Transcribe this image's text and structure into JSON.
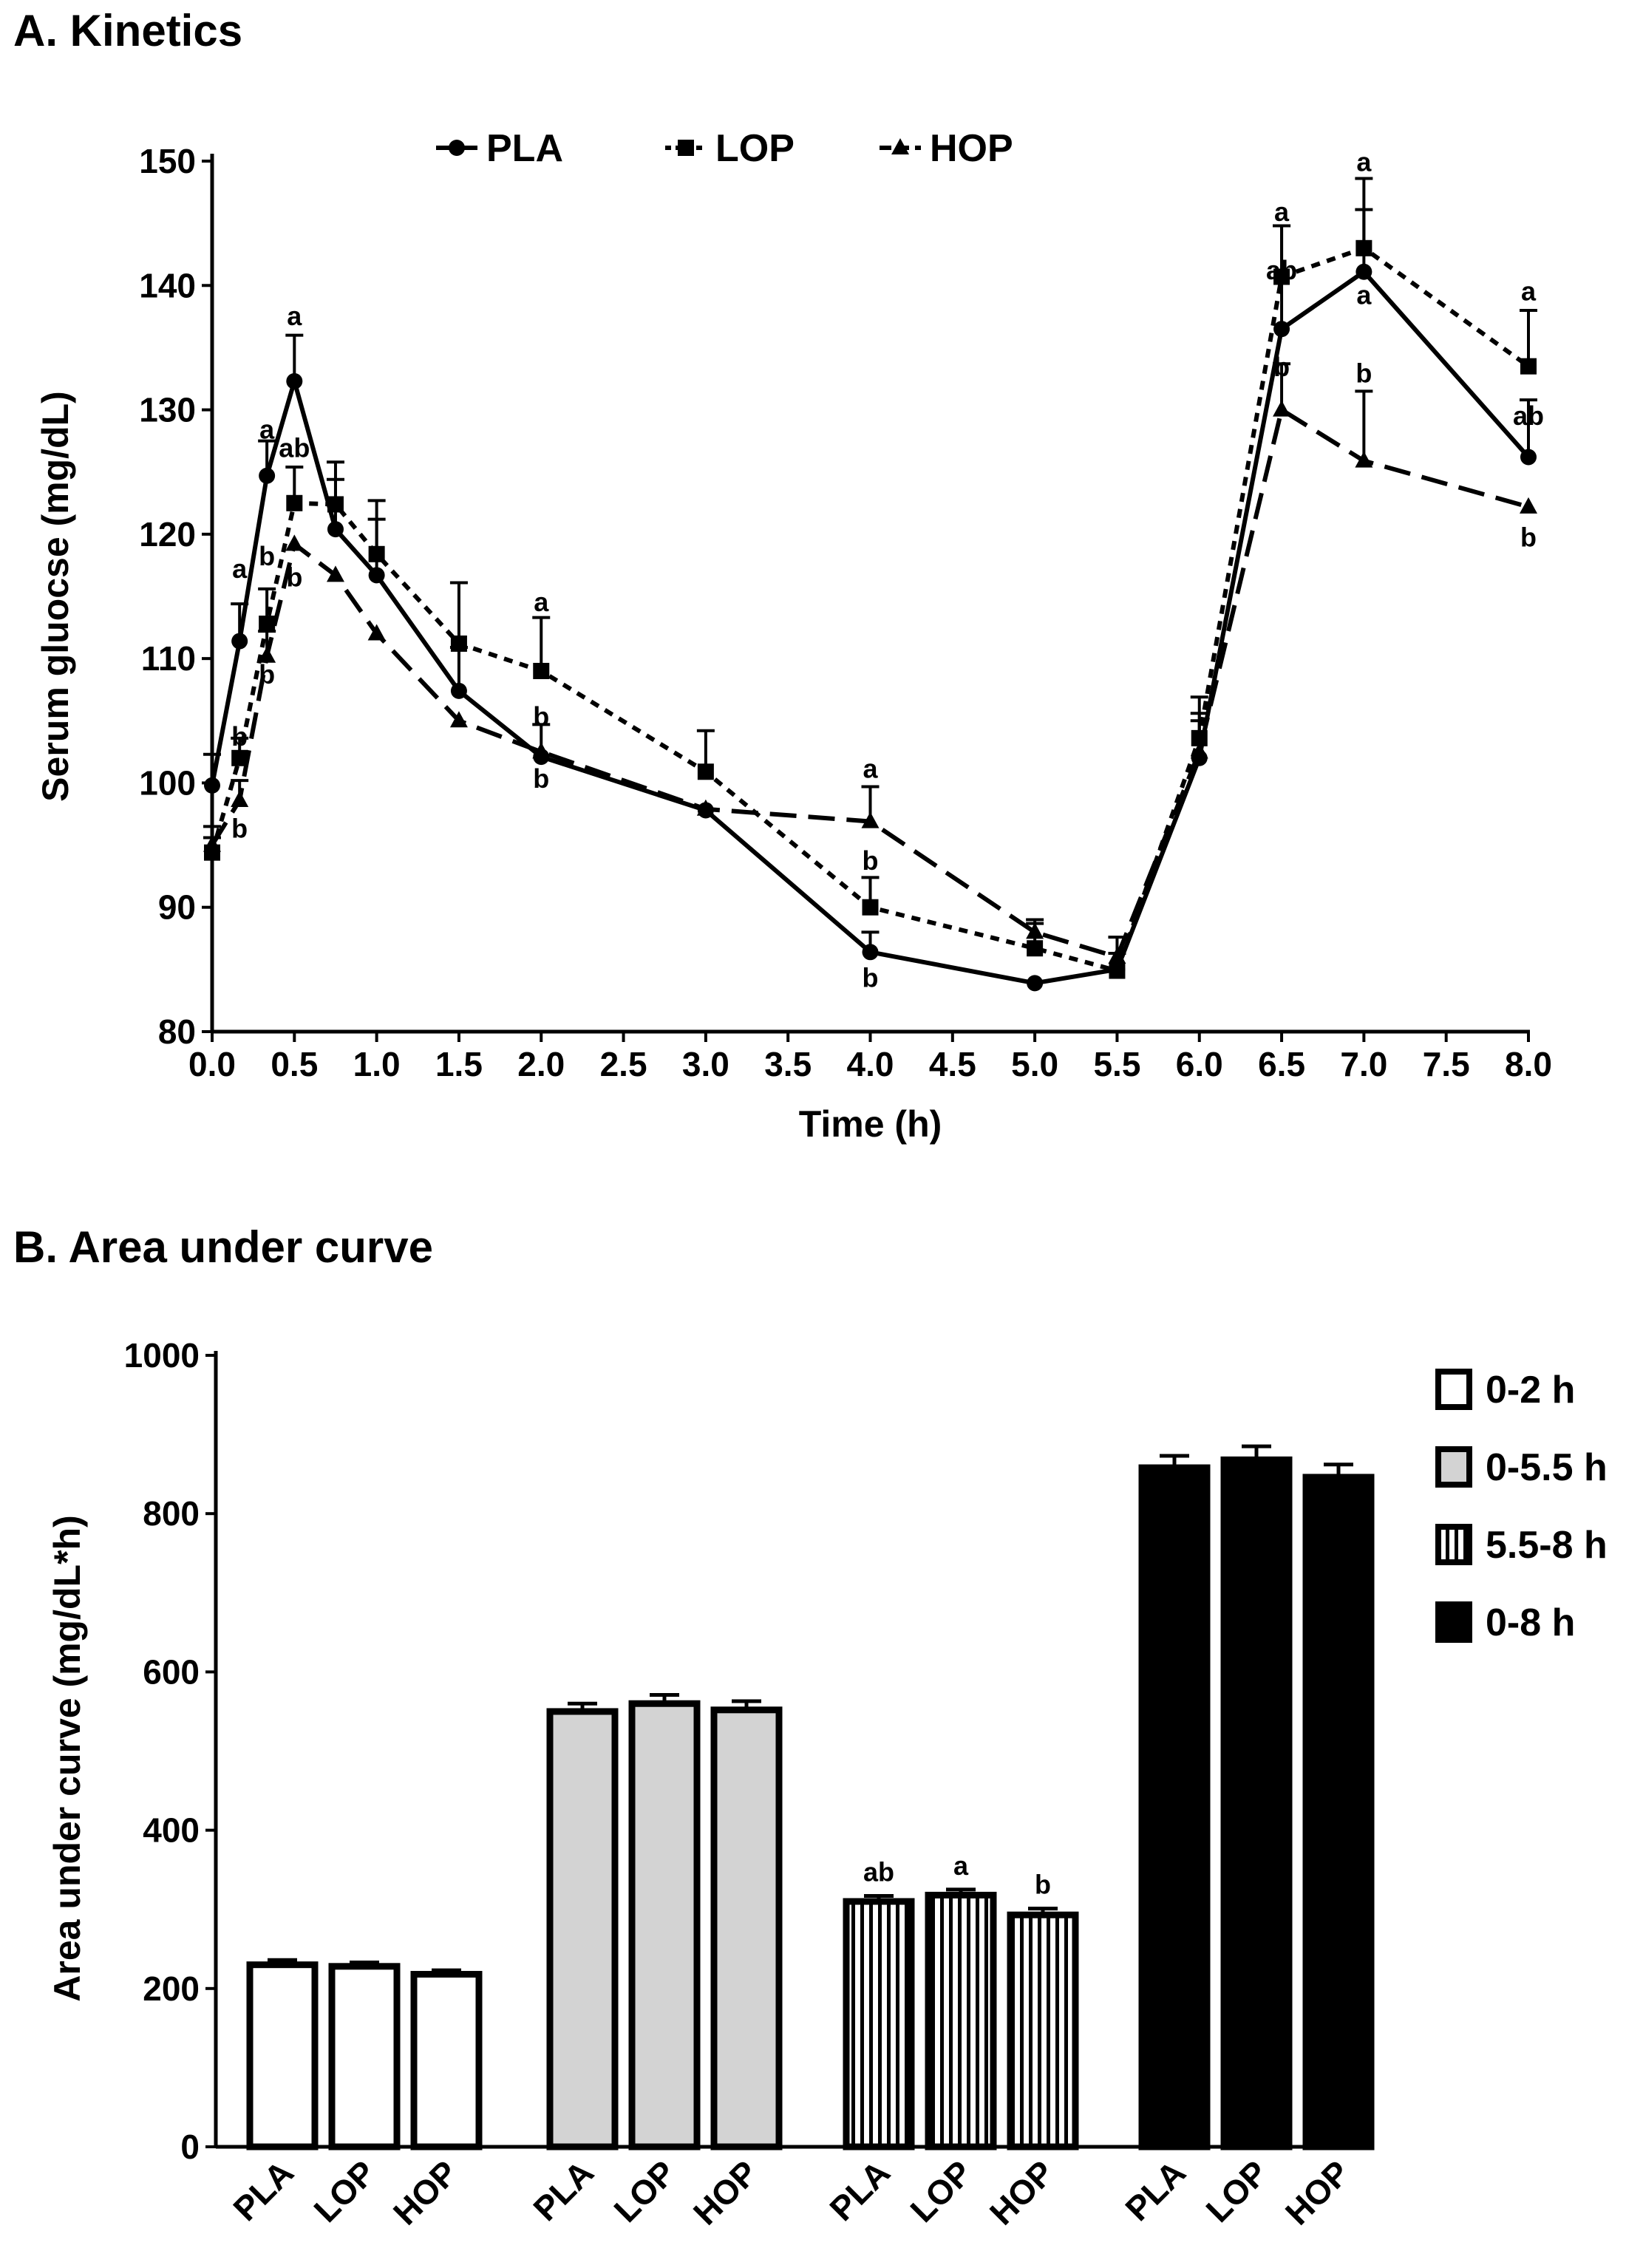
{
  "panel_a_title": "A. Kinetics",
  "panel_b_title": "B. Area under curve",
  "chart_data": [
    {
      "type": "line",
      "title": "A. Kinetics",
      "xlabel": "Time (h)",
      "ylabel": "Serum gluocse (mg/dL)",
      "xlim": [
        0,
        8
      ],
      "ylim": [
        80,
        150
      ],
      "xticks": [
        0,
        0.5,
        1,
        1.5,
        2,
        2.5,
        3,
        3.5,
        4,
        4.5,
        5,
        5.5,
        6,
        6.5,
        7,
        7.5,
        8
      ],
      "xtick_labels": [
        "0.0",
        "0.5",
        "1.0",
        "1.5",
        "2.0",
        "2.5",
        "3.0",
        "3.5",
        "4.0",
        "4.5",
        "5.0",
        "5.5",
        "6.0",
        "6.5",
        "7.0",
        "7.5",
        "8.0"
      ],
      "yticks": [
        80,
        90,
        100,
        110,
        120,
        130,
        140,
        150
      ],
      "ytick_labels": [
        "80",
        "90",
        "100",
        "110",
        "120",
        "130",
        "140",
        "150"
      ],
      "x": [
        0,
        0.167,
        0.333,
        0.5,
        0.75,
        1.0,
        1.5,
        2.0,
        3.0,
        4.0,
        5.0,
        5.5,
        6.0,
        6.5,
        7.0,
        8.0
      ],
      "series": [
        {
          "name": "PLA",
          "marker": "circle",
          "dash": "solid",
          "values": [
            99.8,
            111.4,
            124.7,
            132.3,
            120.4,
            116.7,
            107.4,
            102.1,
            97.8,
            86.4,
            83.9,
            85.0,
            102.0,
            136.5,
            141.1,
            126.2
          ],
          "errors": [
            2.5,
            3.0,
            2.8,
            3.7,
            4.0,
            4.5,
            3.5,
            2.6,
            0,
            1.6,
            0,
            0,
            3.0,
            8.3,
            5.0,
            4.6
          ]
        },
        {
          "name": "LOP",
          "marker": "square",
          "dash": "dotted",
          "values": [
            94.4,
            102.0,
            112.8,
            122.5,
            122.4,
            118.4,
            111.2,
            109.0,
            100.9,
            90.0,
            86.7,
            84.9,
            103.6,
            140.7,
            143.0,
            133.5
          ],
          "errors": [
            1.2,
            1.6,
            2.8,
            2.9,
            3.4,
            4.3,
            4.9,
            4.3,
            3.3,
            2.4,
            2.0,
            1.4,
            3.3,
            4.1,
            5.6,
            4.5
          ]
        },
        {
          "name": "HOP",
          "marker": "triangle",
          "dash": "dashed",
          "values": [
            95.0,
            98.6,
            110.2,
            119.2,
            116.7,
            112.0,
            105.0,
            102.5,
            97.9,
            96.9,
            88.0,
            86.0,
            102.5,
            130.0,
            125.9,
            122.2
          ],
          "errors": [
            1.5,
            1.6,
            2.0,
            0,
            0,
            0,
            0,
            0,
            0,
            2.8,
            1.0,
            1.6,
            3.1,
            3.7,
            5.6,
            0
          ]
        }
      ],
      "annotations": [
        {
          "text": "a",
          "x": 0.5,
          "y": 136.8
        },
        {
          "text": "a",
          "x": 0.167,
          "y": 116.5
        },
        {
          "text": "a",
          "x": 0.333,
          "y": 127.7
        },
        {
          "text": "ab",
          "x": 0.5,
          "y": 126.2
        },
        {
          "text": "b",
          "x": 0.333,
          "y": 117.5
        },
        {
          "text": "b",
          "x": 0.5,
          "y": 115.8
        },
        {
          "text": "b",
          "x": 0.333,
          "y": 108.0
        },
        {
          "text": "b",
          "x": 0.167,
          "y": 103.0
        },
        {
          "text": "b",
          "x": 0.167,
          "y": 95.6
        },
        {
          "text": "a",
          "x": 2.0,
          "y": 113.8
        },
        {
          "text": "b",
          "x": 2.0,
          "y": 104.6
        },
        {
          "text": "b",
          "x": 2.0,
          "y": 99.6
        },
        {
          "text": "a",
          "x": 4.0,
          "y": 100.4
        },
        {
          "text": "b",
          "x": 4.0,
          "y": 93.0
        },
        {
          "text": "b",
          "x": 4.0,
          "y": 83.6
        },
        {
          "text": "a",
          "x": 6.5,
          "y": 145.2
        },
        {
          "text": "ab",
          "x": 6.5,
          "y": 140.5
        },
        {
          "text": "b",
          "x": 6.5,
          "y": 132.7
        },
        {
          "text": "a",
          "x": 7.0,
          "y": 149.2
        },
        {
          "text": "a",
          "x": 7.0,
          "y": 138.5
        },
        {
          "text": "b",
          "x": 7.0,
          "y": 132.2
        },
        {
          "text": "a",
          "x": 8.0,
          "y": 138.8
        },
        {
          "text": "ab",
          "x": 8.0,
          "y": 128.8
        },
        {
          "text": "b",
          "x": 8.0,
          "y": 119.0
        }
      ],
      "legend": [
        "PLA",
        "LOP",
        "HOP"
      ],
      "legend_position": "top"
    },
    {
      "type": "bar",
      "title": "B. Area under curve",
      "xlabel": "",
      "ylabel": "Area under curve (mg/dL*h)",
      "ylim": [
        0,
        1000
      ],
      "yticks": [
        0,
        200,
        400,
        600,
        800,
        1000
      ],
      "ytick_labels": [
        "0",
        "200",
        "400",
        "600",
        "800",
        "1000"
      ],
      "categories": [
        "PLA",
        "LOP",
        "HOP"
      ],
      "series": [
        {
          "name": "0-2 h",
          "fill": "white",
          "values": [
            230,
            228,
            218
          ],
          "errors": [
            6,
            5,
            5
          ]
        },
        {
          "name": "0-5.5 h",
          "fill": "gray",
          "values": [
            550,
            560,
            552
          ],
          "errors": [
            10,
            11,
            11
          ]
        },
        {
          "name": "5.5-8 h",
          "fill": "striped",
          "values": [
            310,
            318,
            293
          ],
          "errors": [
            7,
            7,
            8
          ],
          "letters": [
            "ab",
            "a",
            "b"
          ]
        },
        {
          "name": "0-8 h",
          "fill": "black",
          "values": [
            858,
            868,
            846
          ],
          "errors": [
            15,
            17,
            16
          ]
        }
      ],
      "legend": [
        "0-2 h",
        "0-5.5 h",
        "5.5-8 h",
        "0-8 h"
      ],
      "legend_position": "right"
    }
  ]
}
